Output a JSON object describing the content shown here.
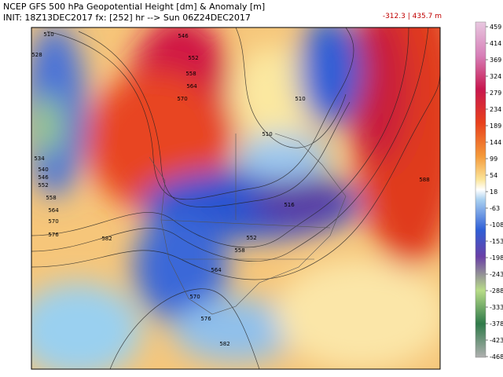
{
  "header": {
    "title": "NCEP GFS 500 hPa Geopotential Height [dm] & Anomaly [m]",
    "init": "INIT: 18Z13DEC2017 fx: [252] hr --> Sun 06Z24DEC2017",
    "range": "-312.3 | 435.7 m"
  },
  "colorbar": {
    "labels": [
      "459",
      "414",
      "369",
      "324",
      "279",
      "234",
      "189",
      "144",
      "99",
      "54",
      "18",
      "-63",
      "-108",
      "-153",
      "-198",
      "-243",
      "-288",
      "-333",
      "-378",
      "-423",
      "-468"
    ]
  },
  "contour_labels": [
    "510",
    "546",
    "528",
    "552",
    "558",
    "564",
    "570",
    "510",
    "534",
    "540",
    "546",
    "552",
    "558",
    "564",
    "570",
    "576",
    "582",
    "516",
    "552",
    "558",
    "564",
    "570",
    "576",
    "582",
    "588",
    "510"
  ]
}
